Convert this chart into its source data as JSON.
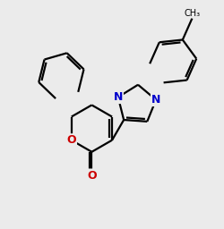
{
  "background_color": "#ebebeb",
  "bond_color": "#000000",
  "nitrogen_color": "#0000cc",
  "oxygen_color": "#cc0000",
  "line_width": 1.6,
  "font_size_atom": 9,
  "dbl_off": 3.5
}
